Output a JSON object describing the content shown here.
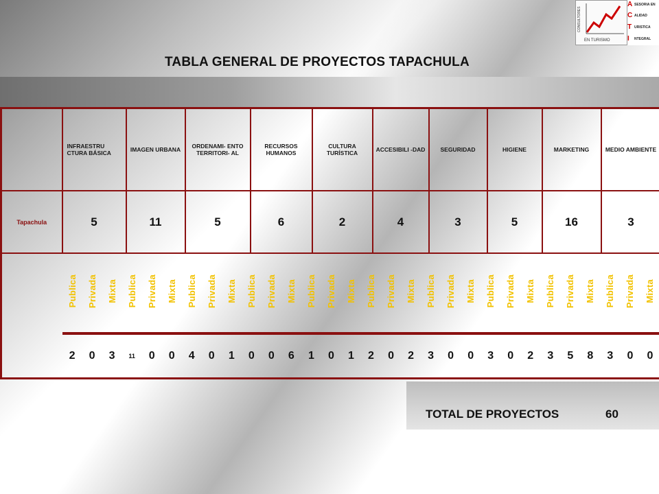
{
  "title": "TABLA GENERAL DE PROYECTOS TAPACHULA",
  "logo": {
    "vertical_text": "CONSULTORES",
    "bottom_text": "EN TURISMO",
    "lines": [
      "SESORIA EN",
      "ALIDAD",
      "URISTICA",
      "NTEGRAL"
    ],
    "accent_color": "#cc0000"
  },
  "table": {
    "row_label": "Tapachula",
    "categories": [
      {
        "name": "INFRAESTRU CTURA BÁSICA",
        "total": "5",
        "values": [
          "2",
          "0",
          "3"
        ]
      },
      {
        "name": "IMAGEN URBANA",
        "total": "11",
        "values": [
          "11",
          "0",
          "0"
        ]
      },
      {
        "name": "ORDENAMI- ENTO TERRITORI- AL",
        "total": "5",
        "values": [
          "4",
          "0",
          "1"
        ]
      },
      {
        "name": "RECURSOS HUMANOS",
        "total": "6",
        "values": [
          "0",
          "0",
          "6"
        ]
      },
      {
        "name": "CULTURA TURÍSTICA",
        "total": "2",
        "values": [
          "1",
          "0",
          "1"
        ]
      },
      {
        "name": "ACCESIBILI -DAD",
        "total": "4",
        "values": [
          "2",
          "0",
          "2"
        ]
      },
      {
        "name": "SEGURIDAD",
        "total": "3",
        "values": [
          "3",
          "0",
          "0"
        ]
      },
      {
        "name": "HIGIENE",
        "total": "5",
        "values": [
          "3",
          "0",
          "2"
        ]
      },
      {
        "name": "MARKETING",
        "total": "16",
        "values": [
          "3",
          "5",
          "8"
        ]
      },
      {
        "name": "MEDIO AMBIENTE",
        "total": "3",
        "values": [
          "3",
          "0",
          "0"
        ]
      }
    ],
    "subtypes": [
      "Publica",
      "Privada",
      "Mixta"
    ],
    "border_color": "#8a1010",
    "subtype_color": "#f2c200"
  },
  "total": {
    "label": "TOTAL DE PROYECTOS",
    "value": "60"
  }
}
